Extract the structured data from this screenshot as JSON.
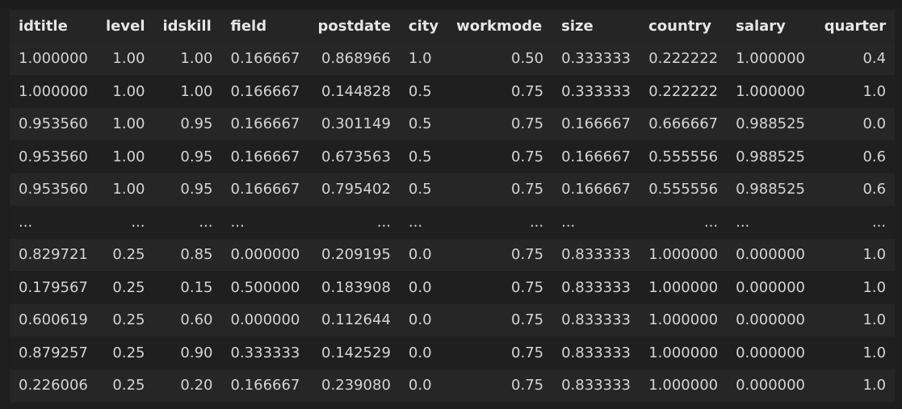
{
  "table": {
    "columns": [
      "idtitle",
      "level",
      "idskill",
      "field",
      "postdate",
      "city",
      "workmode",
      "size",
      "country",
      "salary",
      "quarter"
    ],
    "rows": [
      [
        "1.000000",
        "1.00",
        "1.00",
        "0.166667",
        "0.868966",
        "1.0",
        "0.50",
        "0.333333",
        "0.222222",
        "1.000000",
        "0.4"
      ],
      [
        "1.000000",
        "1.00",
        "1.00",
        "0.166667",
        "0.144828",
        "0.5",
        "0.75",
        "0.333333",
        "0.222222",
        "1.000000",
        "1.0"
      ],
      [
        "0.953560",
        "1.00",
        "0.95",
        "0.166667",
        "0.301149",
        "0.5",
        "0.75",
        "0.166667",
        "0.666667",
        "0.988525",
        "0.0"
      ],
      [
        "0.953560",
        "1.00",
        "0.95",
        "0.166667",
        "0.673563",
        "0.5",
        "0.75",
        "0.166667",
        "0.555556",
        "0.988525",
        "0.6"
      ],
      [
        "0.953560",
        "1.00",
        "0.95",
        "0.166667",
        "0.795402",
        "0.5",
        "0.75",
        "0.166667",
        "0.555556",
        "0.988525",
        "0.6"
      ],
      [
        "...",
        "...",
        "...",
        "...",
        "...",
        "...",
        "...",
        "...",
        "...",
        "...",
        "..."
      ],
      [
        "0.829721",
        "0.25",
        "0.85",
        "0.000000",
        "0.209195",
        "0.0",
        "0.75",
        "0.833333",
        "1.000000",
        "0.000000",
        "1.0"
      ],
      [
        "0.179567",
        "0.25",
        "0.15",
        "0.500000",
        "0.183908",
        "0.0",
        "0.75",
        "0.833333",
        "1.000000",
        "0.000000",
        "1.0"
      ],
      [
        "0.600619",
        "0.25",
        "0.60",
        "0.000000",
        "0.112644",
        "0.0",
        "0.75",
        "0.833333",
        "1.000000",
        "0.000000",
        "1.0"
      ],
      [
        "0.879257",
        "0.25",
        "0.90",
        "0.333333",
        "0.142529",
        "0.0",
        "0.75",
        "0.833333",
        "1.000000",
        "0.000000",
        "1.0"
      ],
      [
        "0.226006",
        "0.25",
        "0.20",
        "0.166667",
        "0.239080",
        "0.0",
        "0.75",
        "0.833333",
        "1.000000",
        "0.000000",
        "1.0"
      ]
    ]
  },
  "colors": {
    "background": "#1e1e1e",
    "header_bg": "#252526",
    "row_odd": "#262626",
    "row_even": "#1f1f1f",
    "text": "#d4d4d4"
  }
}
